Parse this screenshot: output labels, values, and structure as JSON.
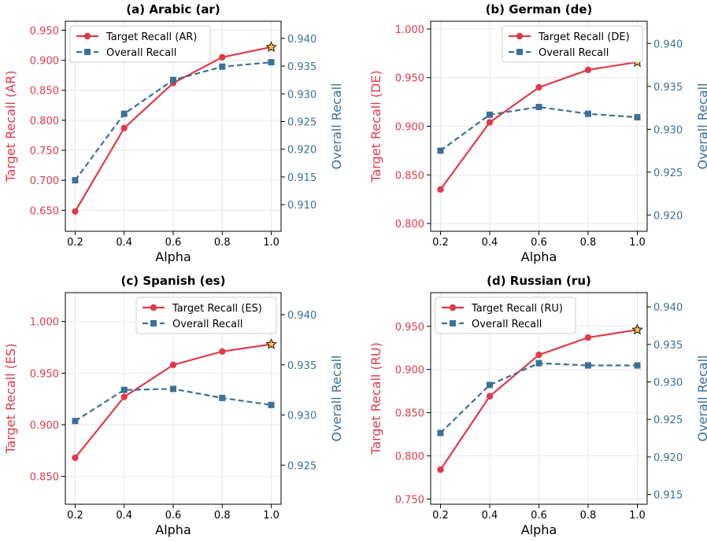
{
  "colors": {
    "target": "#e03a4a",
    "overall": "#3d7096",
    "star_fill": "#f6c343",
    "grid": "#e6e6e6",
    "axis": "#000000"
  },
  "chart_data": [
    {
      "type": "line",
      "title": "(a) Arabic (ar)",
      "xlabel": "Alpha",
      "ylabel_left": "Target Recall (AR)",
      "ylabel_right": "Overall Recall",
      "x": [
        0.2,
        0.4,
        0.6,
        0.8,
        1.0
      ],
      "x_ticks": [
        "0.2",
        "0.4",
        "0.6",
        "0.8",
        "1.0"
      ],
      "xlim": [
        0.16,
        1.04
      ],
      "ylim_left": [
        0.615,
        0.965
      ],
      "ylim_right": [
        0.9052,
        0.9431
      ],
      "left_ticks": [
        0.65,
        0.7,
        0.75,
        0.8,
        0.85,
        0.9,
        0.95
      ],
      "left_tick_labels": [
        "0.650",
        "0.700",
        "0.750",
        "0.800",
        "0.850",
        "0.900",
        "0.950"
      ],
      "right_ticks": [
        0.91,
        0.915,
        0.92,
        0.925,
        0.93,
        0.935,
        0.94
      ],
      "right_tick_labels": [
        "0.910",
        "0.915",
        "0.920",
        "0.925",
        "0.930",
        "0.935",
        "0.940"
      ],
      "legend_position": "top-left",
      "grid": true,
      "series": [
        {
          "name": "Target Recall (AR)",
          "axis": "left",
          "style": "solid",
          "marker": "circle",
          "values": [
            0.648,
            0.787,
            0.862,
            0.905,
            0.922
          ]
        },
        {
          "name": "Overall Recall",
          "axis": "right",
          "style": "dashed",
          "marker": "square",
          "values": [
            0.9144,
            0.9264,
            0.9325,
            0.9349,
            0.9357
          ]
        }
      ],
      "best_marker": {
        "x": 1.0,
        "value": 0.922
      }
    },
    {
      "type": "line",
      "title": "(b) German (de)",
      "xlabel": "Alpha",
      "ylabel_left": "Target Recall (DE)",
      "ylabel_right": "Overall Recall",
      "x": [
        0.2,
        0.4,
        0.6,
        0.8,
        1.0
      ],
      "x_ticks": [
        "0.2",
        "0.4",
        "0.6",
        "0.8",
        "1.0"
      ],
      "xlim": [
        0.16,
        1.04
      ],
      "ylim_left": [
        0.792,
        1.008
      ],
      "ylim_right": [
        0.9181,
        0.9426
      ],
      "left_ticks": [
        0.8,
        0.85,
        0.9,
        0.95,
        1.0
      ],
      "left_tick_labels": [
        "0.800",
        "0.850",
        "0.900",
        "0.950",
        "1.000"
      ],
      "right_ticks": [
        0.92,
        0.925,
        0.93,
        0.935,
        0.94
      ],
      "right_tick_labels": [
        "0.920",
        "0.925",
        "0.930",
        "0.935",
        "0.940"
      ],
      "legend_position": "top-right",
      "grid": true,
      "series": [
        {
          "name": "Target Recall (DE)",
          "axis": "left",
          "style": "solid",
          "marker": "circle",
          "values": [
            0.835,
            0.904,
            0.94,
            0.958,
            0.966
          ]
        },
        {
          "name": "Overall Recall",
          "axis": "right",
          "style": "dashed",
          "marker": "square",
          "values": [
            0.9275,
            0.9317,
            0.9326,
            0.9318,
            0.9314
          ]
        }
      ],
      "best_marker": {
        "x": 1.0,
        "value": 0.966
      }
    },
    {
      "type": "line",
      "title": "(c) Spanish (es)",
      "xlabel": "Alpha",
      "ylabel_left": "Target Recall (ES)",
      "ylabel_right": "Overall Recall",
      "x": [
        0.2,
        0.4,
        0.6,
        0.8,
        1.0
      ],
      "x_ticks": [
        "0.2",
        "0.4",
        "0.6",
        "0.8",
        "1.0"
      ],
      "xlim": [
        0.16,
        1.04
      ],
      "ylim_left": [
        0.823,
        1.028
      ],
      "ylim_right": [
        0.9211,
        0.9422
      ],
      "left_ticks": [
        0.85,
        0.9,
        0.95,
        1.0
      ],
      "left_tick_labels": [
        "0.850",
        "0.900",
        "0.950",
        "1.000"
      ],
      "right_ticks": [
        0.925,
        0.93,
        0.935,
        0.94
      ],
      "right_tick_labels": [
        "0.925",
        "0.930",
        "0.935",
        "0.940"
      ],
      "legend_position": "top-right",
      "grid": true,
      "series": [
        {
          "name": "Target Recall (ES)",
          "axis": "left",
          "style": "solid",
          "marker": "circle",
          "values": [
            0.868,
            0.927,
            0.958,
            0.971,
            0.978
          ]
        },
        {
          "name": "Overall Recall",
          "axis": "right",
          "style": "dashed",
          "marker": "square",
          "values": [
            0.9294,
            0.9325,
            0.9326,
            0.9317,
            0.931
          ]
        }
      ],
      "best_marker": {
        "x": 1.0,
        "value": 0.978
      }
    },
    {
      "type": "line",
      "title": "(d) Russian (ru)",
      "xlabel": "Alpha",
      "ylabel_left": "Target Recall (RU)",
      "ylabel_right": "Overall Recall",
      "x": [
        0.2,
        0.4,
        0.6,
        0.8,
        1.0
      ],
      "x_ticks": [
        "0.2",
        "0.4",
        "0.6",
        "0.8",
        "1.0"
      ],
      "xlim": [
        0.16,
        1.04
      ],
      "ylim_left": [
        0.744,
        0.989
      ],
      "ylim_right": [
        0.9137,
        0.9419
      ],
      "left_ticks": [
        0.75,
        0.8,
        0.85,
        0.9,
        0.95
      ],
      "left_tick_labels": [
        "0.750",
        "0.800",
        "0.850",
        "0.900",
        "0.950"
      ],
      "right_ticks": [
        0.915,
        0.92,
        0.925,
        0.93,
        0.935,
        0.94
      ],
      "right_tick_labels": [
        "0.915",
        "0.920",
        "0.925",
        "0.930",
        "0.935",
        "0.940"
      ],
      "legend_position": "top-left",
      "grid": true,
      "series": [
        {
          "name": "Target Recall (RU)",
          "axis": "left",
          "style": "solid",
          "marker": "circle",
          "values": [
            0.784,
            0.869,
            0.917,
            0.937,
            0.946
          ]
        },
        {
          "name": "Overall Recall",
          "axis": "right",
          "style": "dashed",
          "marker": "square",
          "values": [
            0.9232,
            0.9296,
            0.9325,
            0.9322,
            0.9322
          ]
        }
      ],
      "best_marker": {
        "x": 1.0,
        "value": 0.946
      }
    }
  ]
}
